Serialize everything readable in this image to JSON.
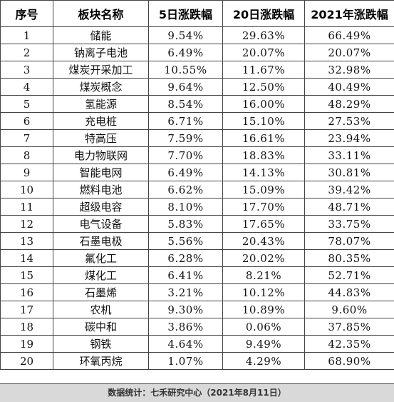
{
  "table": {
    "headers": [
      "序号",
      "板块名称",
      "5日涨跌幅",
      "20日涨跌幅",
      "2021年涨跌幅"
    ],
    "rows": [
      [
        "1",
        "储能",
        "9.54%",
        "29.63%",
        "66.49%"
      ],
      [
        "2",
        "钠离子电池",
        "6.49%",
        "20.07%",
        "20.07%"
      ],
      [
        "3",
        "煤炭开采加工",
        "10.55%",
        "11.67%",
        "32.98%"
      ],
      [
        "4",
        "煤炭概念",
        "9.64%",
        "12.50%",
        "40.49%"
      ],
      [
        "5",
        "氢能源",
        "8.54%",
        "16.00%",
        "48.29%"
      ],
      [
        "6",
        "充电桩",
        "6.71%",
        "15.10%",
        "27.53%"
      ],
      [
        "7",
        "特高压",
        "7.59%",
        "16.61%",
        "23.94%"
      ],
      [
        "8",
        "电力物联网",
        "7.70%",
        "18.83%",
        "33.11%"
      ],
      [
        "9",
        "智能电网",
        "6.49%",
        "14.13%",
        "30.81%"
      ],
      [
        "10",
        "燃料电池",
        "6.62%",
        "15.09%",
        "39.42%"
      ],
      [
        "11",
        "超级电容",
        "8.10%",
        "17.70%",
        "48.71%"
      ],
      [
        "12",
        "电气设备",
        "5.83%",
        "17.65%",
        "33.75%"
      ],
      [
        "13",
        "石墨电极",
        "5.56%",
        "20.43%",
        "78.07%"
      ],
      [
        "14",
        "氟化工",
        "6.28%",
        "20.02%",
        "80.35%"
      ],
      [
        "15",
        "煤化工",
        "6.41%",
        "8.21%",
        "52.71%"
      ],
      [
        "16",
        "石墨烯",
        "3.21%",
        "10.12%",
        "44.83%"
      ],
      [
        "17",
        "农机",
        "9.30%",
        "10.89%",
        "9.60%"
      ],
      [
        "18",
        "碳中和",
        "3.86%",
        "0.06%",
        "37.85%"
      ],
      [
        "19",
        "钢铁",
        "4.64%",
        "9.49%",
        "42.35%"
      ],
      [
        "20",
        "环氧丙烷",
        "1.07%",
        "4.29%",
        "68.90%"
      ]
    ]
  },
  "footer": {
    "source": "数据统计：七禾研究中心（2021年8月11日）"
  }
}
